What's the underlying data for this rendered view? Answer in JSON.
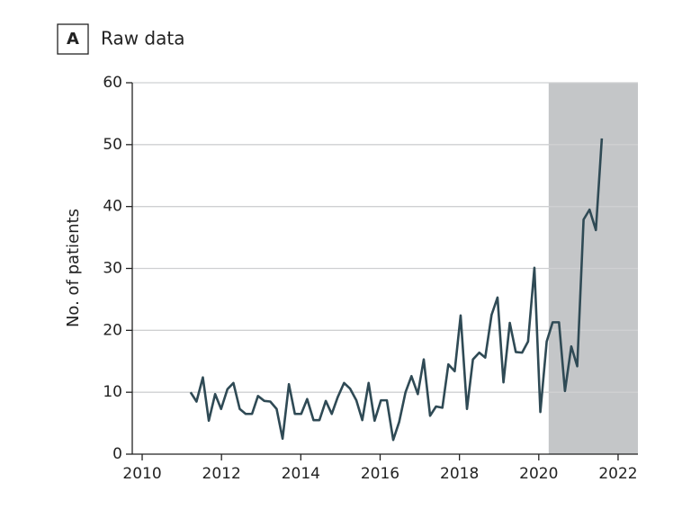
{
  "chart_data": {
    "type": "line",
    "panel_label": "A",
    "title": "Raw data",
    "ylabel": "No. of patients",
    "x": [
      2011.22,
      2011.37,
      2011.53,
      2011.68,
      2011.84,
      2011.99,
      2012.15,
      2012.3,
      2012.46,
      2012.61,
      2012.77,
      2012.92,
      2013.08,
      2013.23,
      2013.39,
      2013.54,
      2013.7,
      2013.85,
      2014.01,
      2014.16,
      2014.32,
      2014.47,
      2014.63,
      2014.78,
      2014.93,
      2015.09,
      2015.24,
      2015.4,
      2015.55,
      2015.71,
      2015.86,
      2016.02,
      2016.17,
      2016.33,
      2016.48,
      2016.64,
      2016.79,
      2016.95,
      2017.1,
      2017.26,
      2017.41,
      2017.57,
      2017.72,
      2017.88,
      2018.03,
      2018.19,
      2018.34,
      2018.5,
      2018.65,
      2018.81,
      2018.96,
      2019.11,
      2019.27,
      2019.42,
      2019.58,
      2019.73,
      2019.89,
      2020.04,
      2020.2,
      2020.35,
      2020.51,
      2020.66,
      2020.82,
      2020.97,
      2021.13,
      2021.28,
      2021.44,
      2021.59
    ],
    "series": [
      {
        "color": "#2f4a55",
        "values": [
          10,
          8.5,
          12.4,
          5.4,
          9.7,
          7.3,
          10.5,
          11.5,
          7.3,
          6.5,
          6.5,
          9.4,
          8.6,
          8.5,
          7.3,
          2.5,
          11.3,
          6.5,
          6.5,
          8.9,
          5.5,
          5.5,
          8.6,
          6.5,
          9.2,
          11.5,
          10.6,
          8.7,
          5.5,
          11.5,
          5.4,
          8.7,
          8.7,
          2.3,
          5.2,
          10,
          12.6,
          9.7,
          15.3,
          6.2,
          7.7,
          7.5,
          14.5,
          13.4,
          22.4,
          7.3,
          15.3,
          16.4,
          15.6,
          22.5,
          25.3,
          11.6,
          21.2,
          16.5,
          16.4,
          18.2,
          30.1,
          6.8,
          18.2,
          21.3,
          21.3,
          10.2,
          17.4,
          14.2,
          37.9,
          39.5,
          36.2,
          51
        ]
      }
    ],
    "xlim": [
      2009.75,
      2022.5
    ],
    "ylim": [
      0,
      60
    ],
    "xticks": [
      2010,
      2012,
      2014,
      2016,
      2018,
      2020,
      2022
    ],
    "yticks": [
      0,
      10,
      20,
      30,
      40,
      50,
      60
    ],
    "grid": true,
    "shaded_region": {
      "x": [
        2020.25,
        2022.5
      ],
      "color": "#c4c6c8"
    }
  }
}
